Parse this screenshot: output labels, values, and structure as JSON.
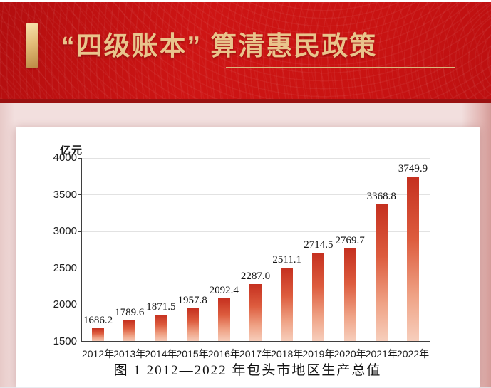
{
  "header": {
    "title": "“四级账本” 算清惠民政策"
  },
  "chart_data": {
    "type": "bar",
    "title": "",
    "unit_label": "亿元",
    "categories": [
      "2012年",
      "2013年",
      "2014年",
      "2015年",
      "2016年",
      "2017年",
      "2018年",
      "2019年",
      "2020年",
      "2021年",
      "2022年"
    ],
    "values": [
      1686.2,
      1789.6,
      1871.5,
      1957.8,
      2092.4,
      2287.0,
      2511.1,
      2714.5,
      2769.7,
      3368.8,
      3749.9
    ],
    "ylim": [
      1500,
      4000
    ],
    "yticks": [
      1500,
      2000,
      2500,
      3000,
      3500,
      4000
    ],
    "grid": "horizontal",
    "legend": "none",
    "caption": "图 1 2012—2022 年包头市地区生产总值"
  },
  "colors": {
    "banner_red": "#c91312",
    "banner_dark_edge": "#9a1111",
    "gold_text": "#e9c48c",
    "gold_line": "#d9b57c",
    "gold_bar_light": "#f8e3ae",
    "gold_bar_dark": "#bb8a44",
    "page_pink": "#f2dfde",
    "bar_top": "#c5301f",
    "bar_mid1": "#dd5c3e",
    "bar_mid2": "#efa285",
    "bar_bottom": "#f7cfbd",
    "axis": "#3f3f3f",
    "gridline": "#e2e2e2"
  }
}
